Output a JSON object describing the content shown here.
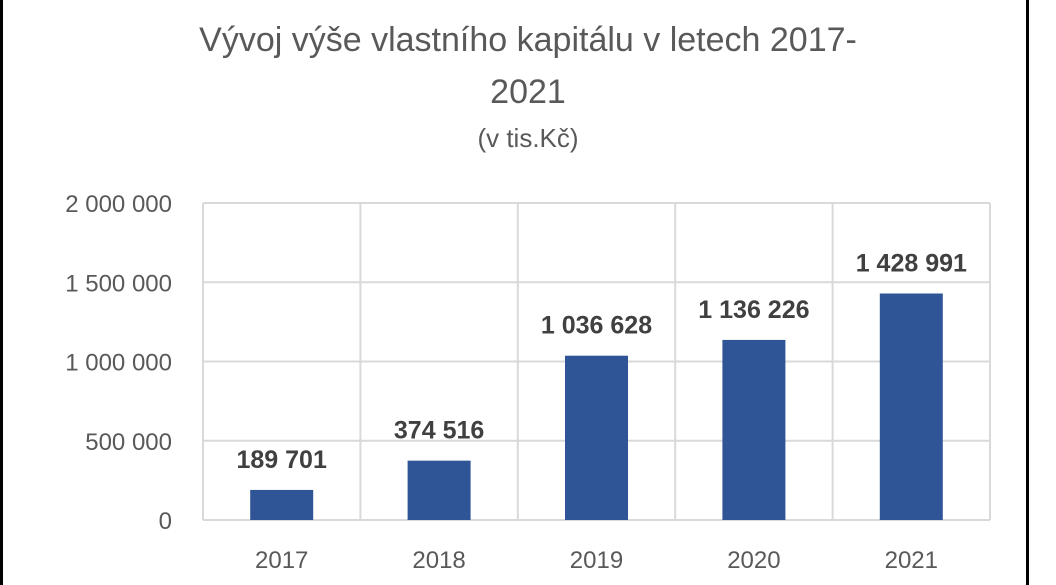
{
  "chart_data": {
    "type": "bar",
    "title_lines": [
      "Vývoj výše vlastního kapitálu v letech 2017-",
      "2021"
    ],
    "subtitle": "(v tis.Kč)",
    "categories": [
      "2017",
      "2018",
      "2019",
      "2020",
      "2021"
    ],
    "values": [
      189701,
      374516,
      1036628,
      1136226,
      1428991
    ],
    "data_labels": [
      "189 701",
      "374 516",
      "1 036 628",
      "1 136 226",
      "1 428 991"
    ],
    "ylim": [
      0,
      2000000
    ],
    "y_ticks": [
      0,
      500000,
      1000000,
      1500000,
      2000000
    ],
    "y_tick_labels": [
      "0",
      "500 000",
      "1 000 000",
      "1 500 000",
      "2 000 000"
    ],
    "grid": true,
    "colors": {
      "bar": "#2f5597",
      "grid": "#d9d9d9",
      "text": "#595959",
      "data_label": "#404040"
    }
  }
}
